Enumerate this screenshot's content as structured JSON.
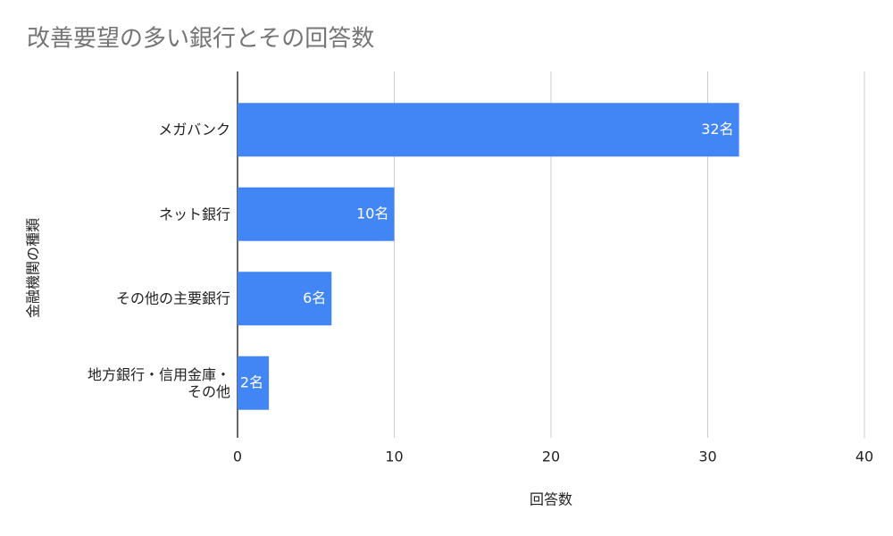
{
  "chart_data": {
    "type": "hbar",
    "title": "改善要望の多い銀行とその回答数",
    "x_label": "回答数",
    "y_label": "金融機関の種類",
    "categories": [
      "メガバンク",
      "ネット銀行",
      "その他の主要銀行",
      "地方銀行・信用金庫・その他"
    ],
    "values": [
      32,
      10,
      6,
      2
    ],
    "value_labels": [
      "32名",
      "10名",
      "6名",
      "2名"
    ],
    "color": "#4285f4",
    "xlim": [
      0,
      40
    ],
    "xticks": [
      0,
      10,
      20,
      30,
      40
    ],
    "grid": true
  }
}
